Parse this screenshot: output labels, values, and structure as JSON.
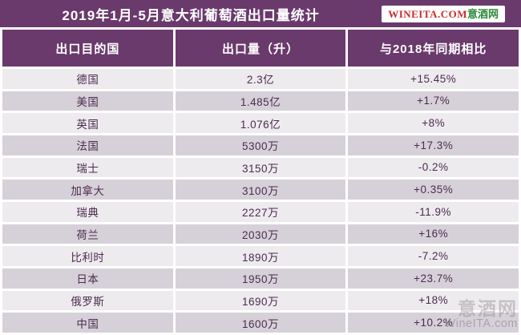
{
  "title": "2019年1月-5月意大利葡萄酒出口量统计",
  "logo": {
    "site": "WINEITA.COM",
    "name": "意酒网"
  },
  "watermark": {
    "cn": "意酒网",
    "en": "WineITA.com"
  },
  "colors": {
    "purple": "#6a3a6c",
    "row_light": "#edebee",
    "row_dark": "#d6d1d8",
    "text": "#4d2b50",
    "logo_red": "#cc2b2b",
    "logo_green": "#2e8b3a"
  },
  "chart_data": {
    "type": "table",
    "title": "2019年1月-5月意大利葡萄酒出口量统计",
    "columns": [
      "出口目的国",
      "出口量（升）",
      "与2018年同期相比"
    ],
    "rows": [
      {
        "country": "德国",
        "volume": "2.3亿",
        "change": "+15.45%"
      },
      {
        "country": "美国",
        "volume": "1.485亿",
        "change": "+1.7%"
      },
      {
        "country": "英国",
        "volume": "1.076亿",
        "change": "+8%"
      },
      {
        "country": "法国",
        "volume": "5300万",
        "change": "+17.3%"
      },
      {
        "country": "瑞士",
        "volume": "3150万",
        "change": "-0.2%"
      },
      {
        "country": "加拿大",
        "volume": "3100万",
        "change": "+0.35%"
      },
      {
        "country": "瑞典",
        "volume": "2227万",
        "change": "-11.9%"
      },
      {
        "country": "荷兰",
        "volume": "2030万",
        "change": "+16%"
      },
      {
        "country": "比利时",
        "volume": "1890万",
        "change": "-7.2%"
      },
      {
        "country": "日本",
        "volume": "1950万",
        "change": "+23.7%"
      },
      {
        "country": "俄罗斯",
        "volume": "1690万",
        "change": "+18%"
      },
      {
        "country": "中国",
        "volume": "1600万",
        "change": "+10.2%"
      }
    ]
  }
}
